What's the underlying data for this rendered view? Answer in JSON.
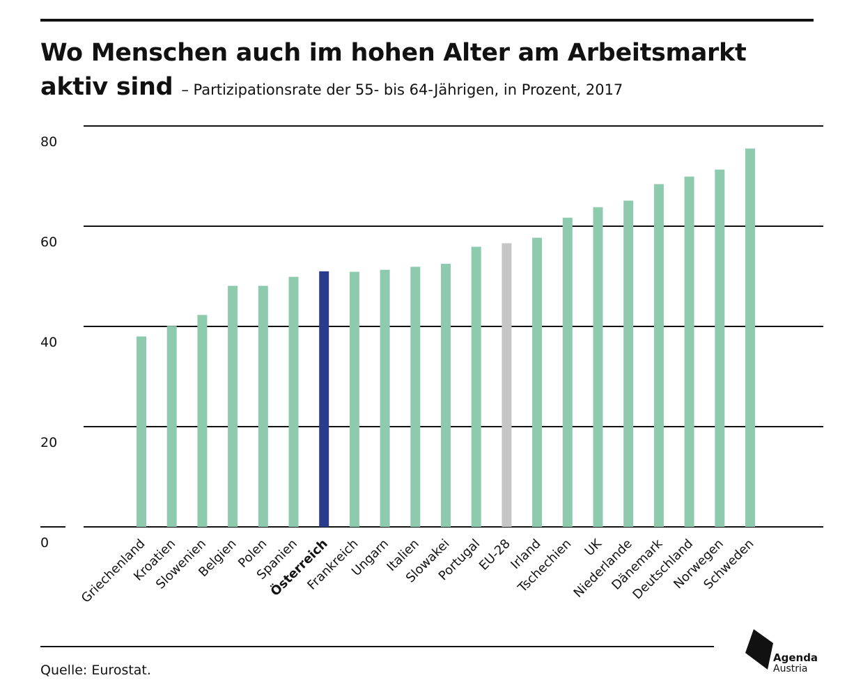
{
  "header": {
    "title_line1": "Wo Menschen auch im hohen Alter am Arbeitsmarkt",
    "title_line2": "aktiv sind",
    "subtitle": "– Partizipationsrate der 55- bis 64-Jährigen, in Prozent, 2017"
  },
  "footer": {
    "source": "Quelle: Eurostat.",
    "logo_line1": "Agenda",
    "logo_line2": "Austria"
  },
  "colors": {
    "bar_default": "#8ecaae",
    "bar_highlight": "#2a3b8c",
    "bar_reference": "#c6c6c6",
    "gridline": "#111111",
    "text": "#111111"
  },
  "chart_data": {
    "type": "bar",
    "title": "Wo Menschen auch im hohen Alter am Arbeitsmarkt aktiv sind",
    "subtitle": "– Partizipationsrate der 55- bis 64-Jährigen, in Prozent, 2017",
    "xlabel": "",
    "ylabel": "",
    "ylim": [
      0,
      80
    ],
    "yticks": [
      0,
      20,
      40,
      60,
      80
    ],
    "grid": true,
    "legend": "none",
    "categories": [
      "Griechenland",
      "Kroatien",
      "Slowenien",
      "Belgien",
      "Polen",
      "Spanien",
      "Österreich",
      "Frankreich",
      "Ungarn",
      "Italien",
      "Slowakei",
      "Portugal",
      "EU-28",
      "Irland",
      "Tschechien",
      "UK",
      "Niederlande",
      "Dänemark",
      "Deutschland",
      "Norwegen",
      "Schweden"
    ],
    "values": [
      38.0,
      40.1,
      42.3,
      48.1,
      48.1,
      49.9,
      51.0,
      50.9,
      51.3,
      51.9,
      52.5,
      55.9,
      56.6,
      57.7,
      61.7,
      63.8,
      65.1,
      68.4,
      69.9,
      71.3,
      75.5
    ],
    "highlight": "Österreich",
    "reference": "EU-28"
  }
}
